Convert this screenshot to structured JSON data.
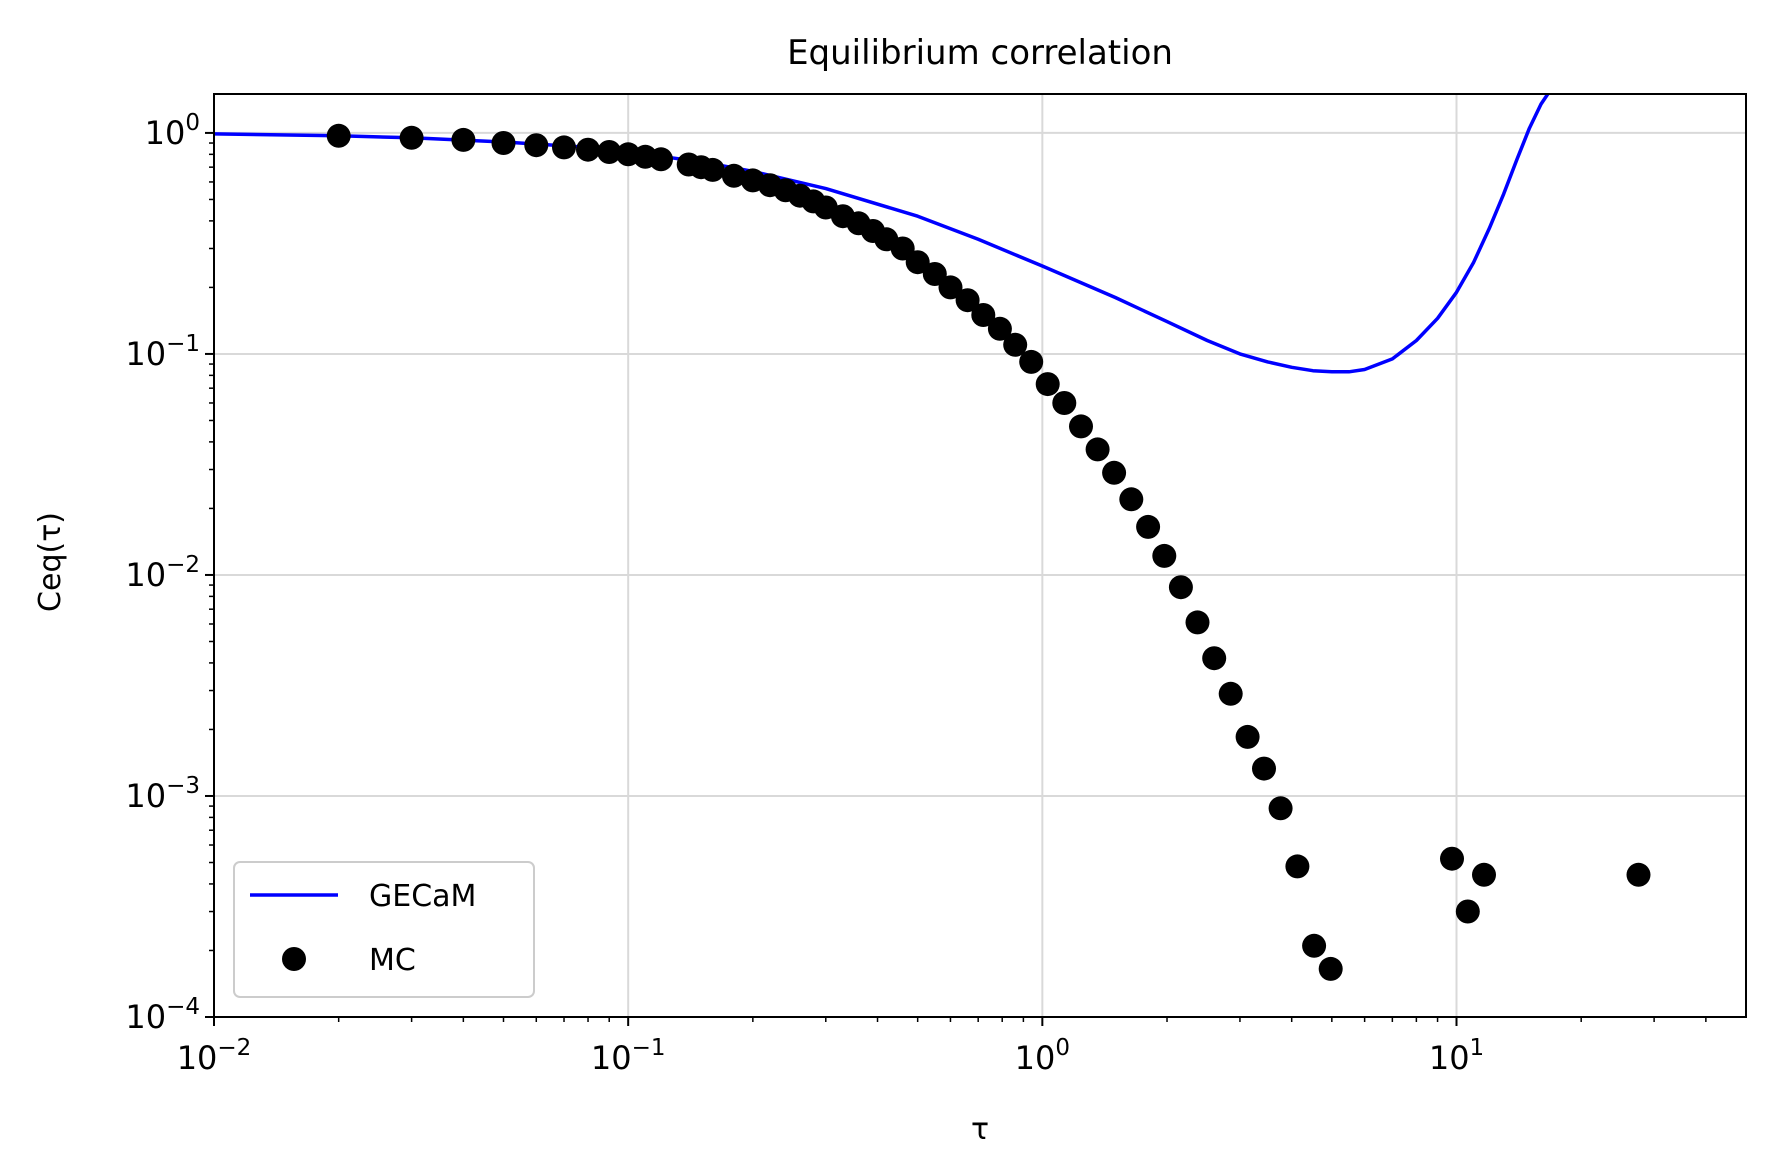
{
  "chart_data": {
    "type": "line",
    "title": "Equilibrium correlation",
    "xlabel": "τ",
    "ylabel": "Ceq(τ)",
    "xscale": "log",
    "yscale": "log",
    "xlim": [
      0.01,
      50
    ],
    "ylim": [
      0.0001,
      1.5
    ],
    "grid": true,
    "legend_position": "lower-left",
    "x_ticks": [
      {
        "value": 0.01,
        "base": "10",
        "exp": "−2"
      },
      {
        "value": 0.1,
        "base": "10",
        "exp": "−1"
      },
      {
        "value": 1,
        "base": "10",
        "exp": "0"
      },
      {
        "value": 10,
        "base": "10",
        "exp": "1"
      }
    ],
    "y_ticks": [
      {
        "value": 1,
        "base": "10",
        "exp": "0"
      },
      {
        "value": 0.1,
        "base": "10",
        "exp": "−1"
      },
      {
        "value": 0.01,
        "base": "10",
        "exp": "−2"
      },
      {
        "value": 0.001,
        "base": "10",
        "exp": "−3"
      },
      {
        "value": 0.0001,
        "base": "10",
        "exp": "−4"
      }
    ],
    "series": [
      {
        "name": "GECaM",
        "kind": "line",
        "color": "#0000ff",
        "x": [
          0.01,
          0.02,
          0.03,
          0.05,
          0.08,
          0.1,
          0.15,
          0.2,
          0.3,
          0.5,
          0.7,
          1.0,
          1.5,
          2.0,
          2.5,
          3.0,
          3.5,
          4.0,
          4.5,
          5.0,
          5.5,
          6.0,
          7.0,
          8.0,
          9.0,
          10.0,
          11.0,
          12.0,
          13.0,
          14.0,
          15.0,
          16.0,
          17.0
        ],
        "y": [
          0.99,
          0.97,
          0.95,
          0.91,
          0.86,
          0.82,
          0.74,
          0.67,
          0.56,
          0.42,
          0.33,
          0.25,
          0.18,
          0.14,
          0.115,
          0.1,
          0.092,
          0.087,
          0.084,
          0.083,
          0.083,
          0.085,
          0.095,
          0.115,
          0.145,
          0.19,
          0.26,
          0.37,
          0.53,
          0.76,
          1.05,
          1.35,
          1.6
        ]
      },
      {
        "name": "MC",
        "kind": "scatter",
        "color": "#000000",
        "x": [
          0.02,
          0.03,
          0.04,
          0.05,
          0.06,
          0.07,
          0.08,
          0.09,
          0.1,
          0.11,
          0.12,
          0.14,
          0.15,
          0.16,
          0.18,
          0.2,
          0.22,
          0.24,
          0.26,
          0.28,
          0.3,
          0.33,
          0.36,
          0.39,
          0.42,
          0.46,
          0.5,
          0.55,
          0.6,
          0.66,
          0.72,
          0.79,
          0.86,
          0.94,
          1.03,
          1.13,
          1.24,
          1.36,
          1.49,
          1.64,
          1.8,
          1.97,
          2.16,
          2.37,
          2.6,
          2.85,
          3.13,
          3.43,
          3.76,
          4.13,
          4.53,
          4.97,
          9.75,
          10.65,
          11.65,
          27.5
        ],
        "y": [
          0.97,
          0.95,
          0.93,
          0.9,
          0.88,
          0.86,
          0.84,
          0.82,
          0.8,
          0.78,
          0.76,
          0.72,
          0.7,
          0.68,
          0.64,
          0.61,
          0.58,
          0.55,
          0.52,
          0.49,
          0.46,
          0.42,
          0.39,
          0.36,
          0.33,
          0.3,
          0.26,
          0.23,
          0.2,
          0.175,
          0.15,
          0.13,
          0.11,
          0.092,
          0.073,
          0.06,
          0.047,
          0.037,
          0.029,
          0.022,
          0.0165,
          0.0122,
          0.0088,
          0.0061,
          0.0042,
          0.0029,
          0.00185,
          0.00133,
          0.00088,
          0.00048,
          0.00021,
          0.000165,
          0.00052,
          0.0003,
          0.00044,
          0.00044
        ]
      }
    ]
  }
}
